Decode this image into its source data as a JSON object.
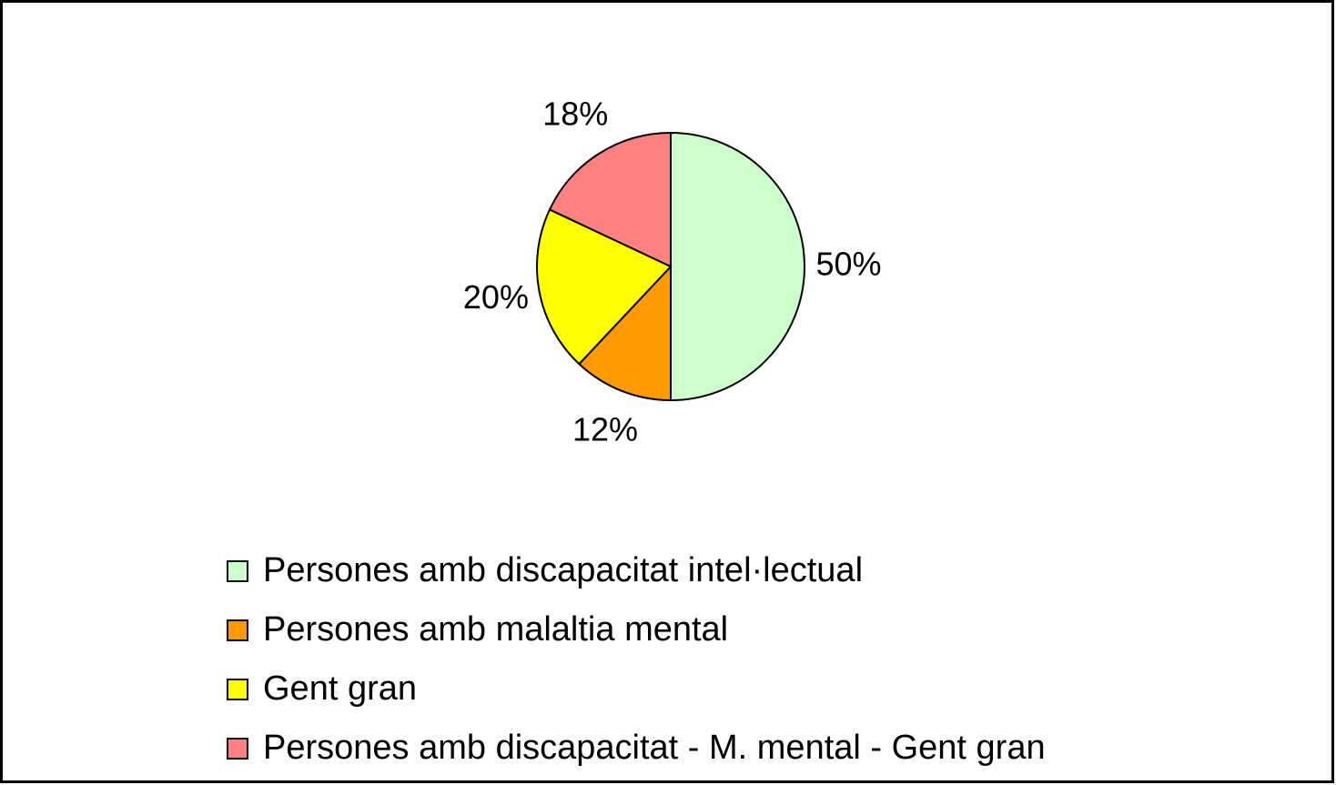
{
  "chart_data": {
    "type": "pie",
    "categories": [
      "Persones amb discapacitat intel·lectual",
      "Persones amb malaltia mental",
      "Gent gran",
      "Persones amb discapacitat - M. mental - Gent gran"
    ],
    "values": [
      50,
      12,
      20,
      18
    ],
    "value_labels": [
      "50%",
      "12%",
      "20%",
      "18%"
    ],
    "colors": [
      "#ccffcc",
      "#ff9900",
      "#ffff00",
      "#ff8080"
    ]
  }
}
